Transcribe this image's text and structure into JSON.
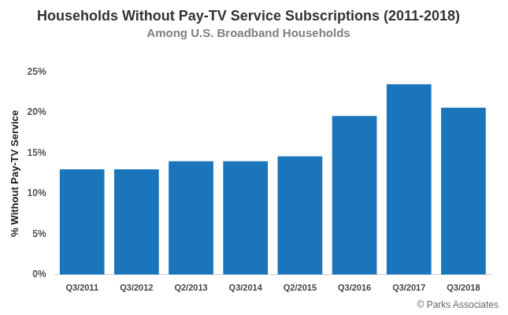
{
  "chart_data": {
    "type": "bar",
    "title": "Households Without Pay-TV Service Subscriptions (2011-2018)",
    "subtitle": "Among U.S. Broadband Households",
    "y_label": "% Without Pay-TV Service",
    "categories": [
      "Q3/2011",
      "Q3/2012",
      "Q2/2013",
      "Q3/2014",
      "Q2/2015",
      "Q3/2016",
      "Q3/2017",
      "Q3/2018"
    ],
    "values": [
      13,
      13,
      14,
      14,
      14.6,
      19.6,
      23.5,
      20.6
    ],
    "color": "#1b75bb",
    "ylim": [
      0,
      25
    ],
    "yticks": [
      {
        "value": 0,
        "label": "0%"
      },
      {
        "value": 5,
        "label": "5%"
      },
      {
        "value": 10,
        "label": "10%"
      },
      {
        "value": 15,
        "label": "15%"
      },
      {
        "value": 20,
        "label": "20%"
      },
      {
        "value": 25,
        "label": "25%"
      }
    ],
    "grid": false,
    "annotations": [
      "© Parks Associates"
    ]
  }
}
